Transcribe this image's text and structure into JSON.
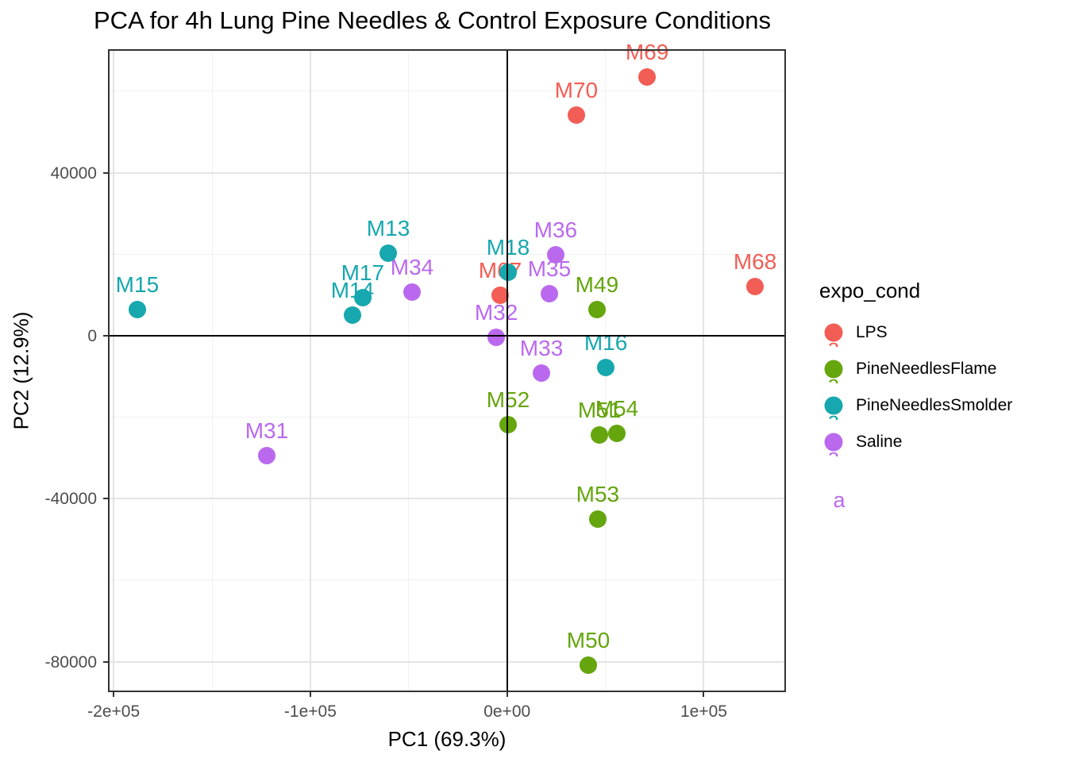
{
  "chart_data": {
    "type": "scatter",
    "title": "PCA for 4h Lung Pine Needles & Control Exposure Conditions",
    "xlabel": "PC1 (69.3%)",
    "ylabel": "PC2 (12.9%)",
    "xlim": [
      -202900,
      141800
    ],
    "ylim": [
      -87500,
      70300
    ],
    "grid": true,
    "zero_lines": {
      "x": 0,
      "y": 0
    },
    "x_ticks": {
      "major_values": [
        -200000,
        -100000,
        0,
        100000
      ],
      "major_labels": [
        "-2e+05",
        "-1e+05",
        "0e+00",
        "1e+05"
      ],
      "minor_values": [
        -150000,
        -50000,
        50000
      ]
    },
    "y_ticks": {
      "major_values": [
        -80000,
        -40000,
        0,
        40000
      ],
      "major_labels": [
        "-80000",
        "-40000",
        "0",
        "40000"
      ],
      "minor_values": [
        -60000,
        -20000,
        20000,
        60000
      ]
    },
    "legend": {
      "title": "expo_cond",
      "position": "right",
      "key_text": "a",
      "items": [
        {
          "label": "LPS",
          "color": "#f25d55"
        },
        {
          "label": "PineNeedlesFlame",
          "color": "#65a50d"
        },
        {
          "label": "PineNeedlesSmolder",
          "color": "#17a7ae"
        },
        {
          "label": "Saline",
          "color": "#ba69ee"
        }
      ]
    },
    "series": [
      {
        "name": "LPS",
        "color": "#f25d55",
        "points": [
          {
            "label": "M67",
            "x": -3500,
            "y": 9900
          },
          {
            "label": "M68",
            "x": 126100,
            "y": 12000
          },
          {
            "label": "M69",
            "x": 71200,
            "y": 63400
          },
          {
            "label": "M70",
            "x": 35200,
            "y": 54100
          }
        ]
      },
      {
        "name": "PineNeedlesFlame",
        "color": "#65a50d",
        "points": [
          {
            "label": "M49",
            "x": 45700,
            "y": 6400
          },
          {
            "label": "M50",
            "x": 41300,
            "y": -80900
          },
          {
            "label": "M51",
            "x": 47000,
            "y": -24400
          },
          {
            "label": "M52",
            "x": 500,
            "y": -21900
          },
          {
            "label": "M53",
            "x": 46100,
            "y": -45100
          },
          {
            "label": "M54",
            "x": 55800,
            "y": -24000
          }
        ]
      },
      {
        "name": "PineNeedlesSmolder",
        "color": "#17a7ae",
        "points": [
          {
            "label": "M13",
            "x": -60400,
            "y": 20200
          },
          {
            "label": "M14",
            "x": -78600,
            "y": 5000
          },
          {
            "label": "M15",
            "x": -188000,
            "y": 6400
          },
          {
            "label": "M16",
            "x": 50200,
            "y": -7900
          },
          {
            "label": "M17",
            "x": -73400,
            "y": 9300
          },
          {
            "label": "M18",
            "x": 500,
            "y": 15500
          }
        ]
      },
      {
        "name": "Saline",
        "color": "#ba69ee",
        "points": [
          {
            "label": "M31",
            "x": -122200,
            "y": -29500
          },
          {
            "label": "M32",
            "x": -5500,
            "y": -400
          },
          {
            "label": "M33",
            "x": 17500,
            "y": -9200
          },
          {
            "label": "M34",
            "x": -48300,
            "y": 10700
          },
          {
            "label": "M35",
            "x": 21500,
            "y": 10300
          },
          {
            "label": "M36",
            "x": 24700,
            "y": 19800
          }
        ]
      }
    ]
  }
}
